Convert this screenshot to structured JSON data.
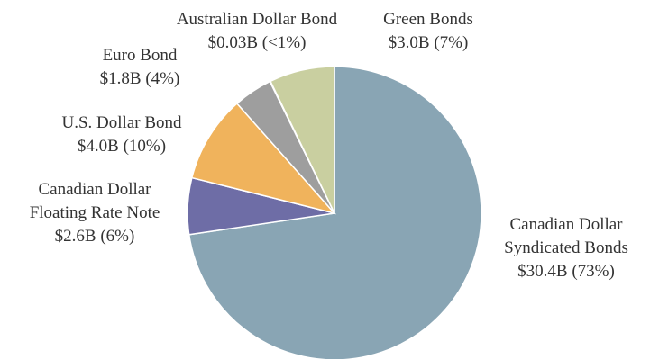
{
  "chart_data": {
    "type": "pie",
    "categories": [
      "Canadian Dollar Syndicated Bonds",
      "Canadian Dollar Floating Rate Note",
      "U.S. Dollar Bond",
      "Euro Bond",
      "Australian Dollar Bond",
      "Green Bonds"
    ],
    "values": [
      30.4,
      2.6,
      4.0,
      1.8,
      0.03,
      3.0
    ],
    "value_labels": [
      "$30.4B (73%)",
      "$2.6B (6%)",
      "$4.0B (10%)",
      "$1.8B (4%)",
      "$0.03B (<1%)",
      "$3.0B (7%)"
    ],
    "colors": [
      "#89a5b4",
      "#6e6da6",
      "#f0b35c",
      "#9e9e9e",
      "#7a8f9c",
      "#c9cfa0"
    ]
  }
}
